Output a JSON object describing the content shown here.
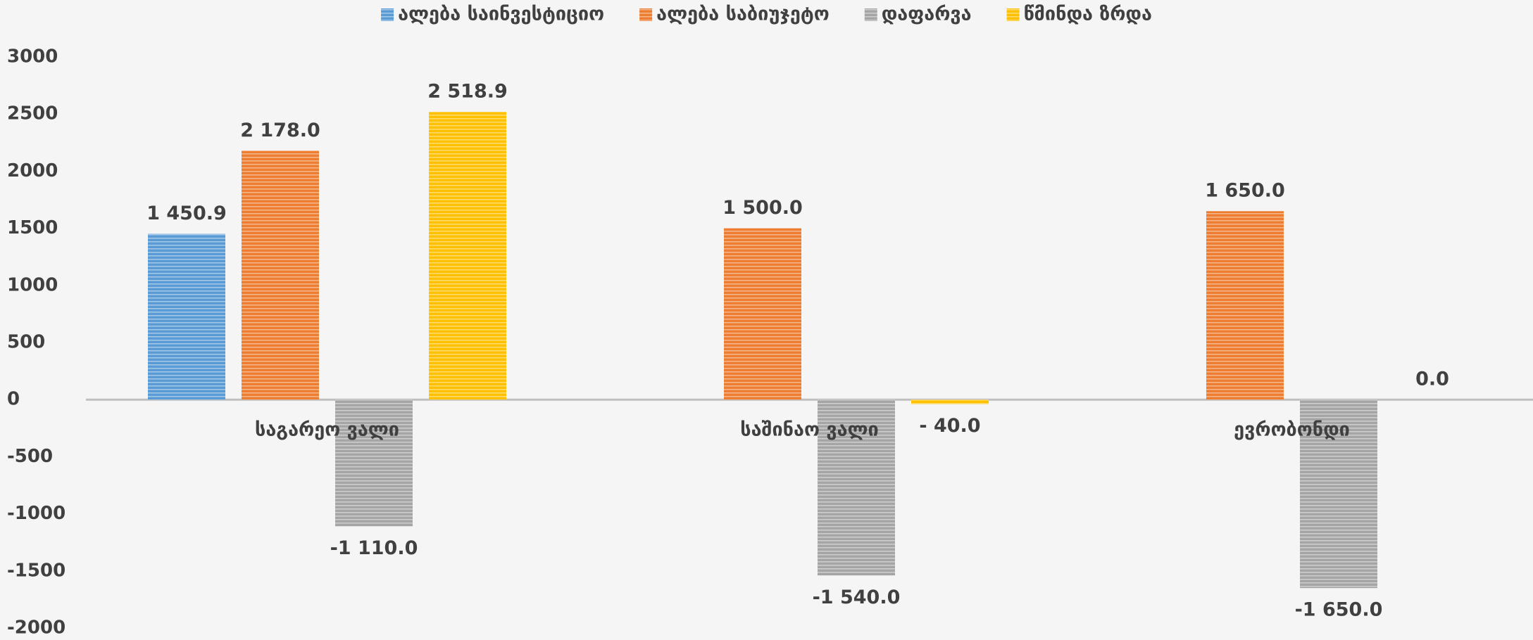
{
  "chart_data": {
    "type": "bar",
    "categories": [
      "საგარეო ვალი",
      "საშინაო ვალი",
      "ევრობონდი"
    ],
    "series": [
      {
        "name": "ალება საინვესტიციო",
        "color": "#5b9bd5",
        "values": [
          1450.9,
          null,
          null
        ],
        "value_labels": [
          "1 450.9",
          null,
          null
        ]
      },
      {
        "name": "ალება საბიუჯეტო",
        "color": "#ed7d31",
        "values": [
          2178.0,
          1500.0,
          1650.0
        ],
        "value_labels": [
          "2 178.0",
          "1 500.0",
          "1 650.0"
        ]
      },
      {
        "name": "დაფარვა",
        "color": "#a5a5a5",
        "values": [
          -1110.0,
          -1540.0,
          -1650.0
        ],
        "value_labels": [
          "-1 110.0",
          "-1 540.0",
          "-1 650.0"
        ]
      },
      {
        "name": "წმინდა ზრდა",
        "color": "#ffc000",
        "values": [
          2518.9,
          -40.0,
          0.0
        ],
        "value_labels": [
          "2 518.9",
          "- 40.0",
          "0.0"
        ]
      }
    ],
    "ylim": [
      -2000,
      3000
    ],
    "yticks": [
      -2000,
      -1500,
      -1000,
      -500,
      0,
      500,
      1000,
      1500,
      2000,
      2500,
      3000
    ],
    "legend": "top"
  }
}
